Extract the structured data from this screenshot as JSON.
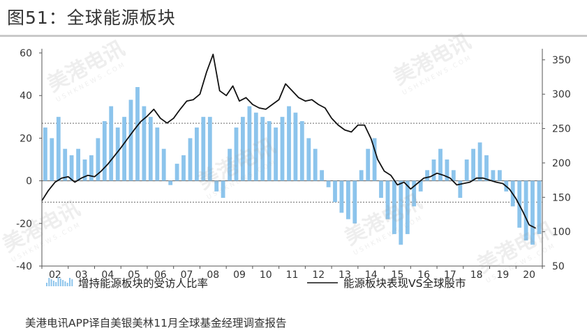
{
  "header": {
    "title": "图51：全球能源板块"
  },
  "source": "美港电讯APP译自美银美林11月全球基金经理调查报告",
  "watermark": {
    "text": "美港电讯",
    "sub": "USHKNEWS.COM"
  },
  "colors": {
    "bar": "#8cc4ec",
    "line": "#111111",
    "axis": "#555555",
    "dotted": "#666666"
  },
  "chart_data": {
    "type": "bar+line",
    "x_tick_labels": [
      "02",
      "03",
      "04",
      "05",
      "06",
      "07",
      "08",
      "09",
      "10",
      "11",
      "12",
      "13",
      "14",
      "15",
      "16",
      "17",
      "18",
      "19",
      "20"
    ],
    "x_range": [
      2002,
      2021
    ],
    "y_left": {
      "range": [
        -40,
        60
      ],
      "ticks": [
        "60",
        "40",
        "20",
        "0",
        "-20",
        "-40"
      ]
    },
    "y_right": {
      "range": [
        50,
        360
      ],
      "ticks": [
        "350",
        "300",
        "250",
        "200",
        "150",
        "100",
        "50"
      ]
    },
    "reference_lines_left": [
      27,
      -10
    ],
    "legend": [
      {
        "label": "增持能源板块的受访人比率",
        "type": "bar"
      },
      {
        "label": "能源板块表现VS全球股市",
        "type": "line"
      }
    ],
    "series": [
      {
        "name": "增持能源板块的受访人比率",
        "axis": "left",
        "type": "bar",
        "x": [
          2002.0,
          2002.25,
          2002.5,
          2002.75,
          2003.0,
          2003.25,
          2003.5,
          2003.75,
          2004.0,
          2004.25,
          2004.5,
          2004.75,
          2005.0,
          2005.25,
          2005.5,
          2005.75,
          2006.0,
          2006.25,
          2006.5,
          2006.75,
          2007.0,
          2007.25,
          2007.5,
          2007.75,
          2008.0,
          2008.25,
          2008.5,
          2008.75,
          2009.0,
          2009.25,
          2009.5,
          2009.75,
          2010.0,
          2010.25,
          2010.5,
          2010.75,
          2011.0,
          2011.25,
          2011.5,
          2011.75,
          2012.0,
          2012.25,
          2012.5,
          2012.75,
          2013.0,
          2013.25,
          2013.5,
          2013.75,
          2014.0,
          2014.25,
          2014.5,
          2014.75,
          2015.0,
          2015.25,
          2015.5,
          2015.75,
          2016.0,
          2016.25,
          2016.5,
          2016.75,
          2017.0,
          2017.25,
          2017.5,
          2017.75,
          2018.0,
          2018.25,
          2018.5,
          2018.75,
          2019.0,
          2019.25,
          2019.5,
          2019.75,
          2020.0,
          2020.25,
          2020.5,
          2020.75
        ],
        "values": [
          25,
          20,
          30,
          15,
          12,
          15,
          10,
          12,
          20,
          28,
          35,
          25,
          30,
          38,
          44,
          35,
          30,
          25,
          15,
          -2,
          8,
          12,
          20,
          25,
          30,
          30,
          -5,
          -8,
          15,
          25,
          30,
          35,
          32,
          30,
          28,
          25,
          30,
          35,
          32,
          28,
          20,
          15,
          5,
          -3,
          -10,
          -15,
          -18,
          -20,
          5,
          15,
          20,
          -8,
          -18,
          -25,
          -30,
          -25,
          -12,
          -5,
          5,
          10,
          15,
          10,
          5,
          -8,
          10,
          15,
          18,
          12,
          5,
          5,
          -5,
          -12,
          -22,
          -28,
          -30,
          -25
        ]
      },
      {
        "name": "能源板块表现VS全球股市",
        "axis": "right",
        "type": "line",
        "x": [
          2002.0,
          2002.25,
          2002.5,
          2002.75,
          2003.0,
          2003.25,
          2003.5,
          2003.75,
          2004.0,
          2004.25,
          2004.5,
          2004.75,
          2005.0,
          2005.25,
          2005.5,
          2005.75,
          2006.0,
          2006.25,
          2006.5,
          2006.75,
          2007.0,
          2007.25,
          2007.5,
          2007.75,
          2008.0,
          2008.25,
          2008.5,
          2008.75,
          2009.0,
          2009.25,
          2009.5,
          2009.75,
          2010.0,
          2010.25,
          2010.5,
          2010.75,
          2011.0,
          2011.25,
          2011.5,
          2011.75,
          2012.0,
          2012.25,
          2012.5,
          2012.75,
          2013.0,
          2013.25,
          2013.5,
          2013.75,
          2014.0,
          2014.25,
          2014.5,
          2014.75,
          2015.0,
          2015.25,
          2015.5,
          2015.75,
          2016.0,
          2016.25,
          2016.5,
          2016.75,
          2017.0,
          2017.25,
          2017.5,
          2017.75,
          2018.0,
          2018.25,
          2018.5,
          2018.75,
          2019.0,
          2019.25,
          2019.5,
          2019.75,
          2020.0,
          2020.25,
          2020.5,
          2020.75
        ],
        "values": [
          145,
          160,
          172,
          178,
          180,
          172,
          178,
          182,
          180,
          188,
          198,
          210,
          222,
          235,
          248,
          260,
          268,
          278,
          265,
          258,
          265,
          278,
          290,
          292,
          300,
          332,
          358,
          305,
          298,
          312,
          290,
          295,
          285,
          280,
          278,
          285,
          292,
          315,
          305,
          295,
          290,
          292,
          285,
          280,
          265,
          255,
          248,
          245,
          255,
          255,
          235,
          205,
          188,
          182,
          168,
          172,
          162,
          170,
          178,
          180,
          185,
          182,
          178,
          168,
          170,
          172,
          178,
          178,
          175,
          172,
          170,
          162,
          148,
          130,
          110,
          105
        ]
      }
    ]
  }
}
